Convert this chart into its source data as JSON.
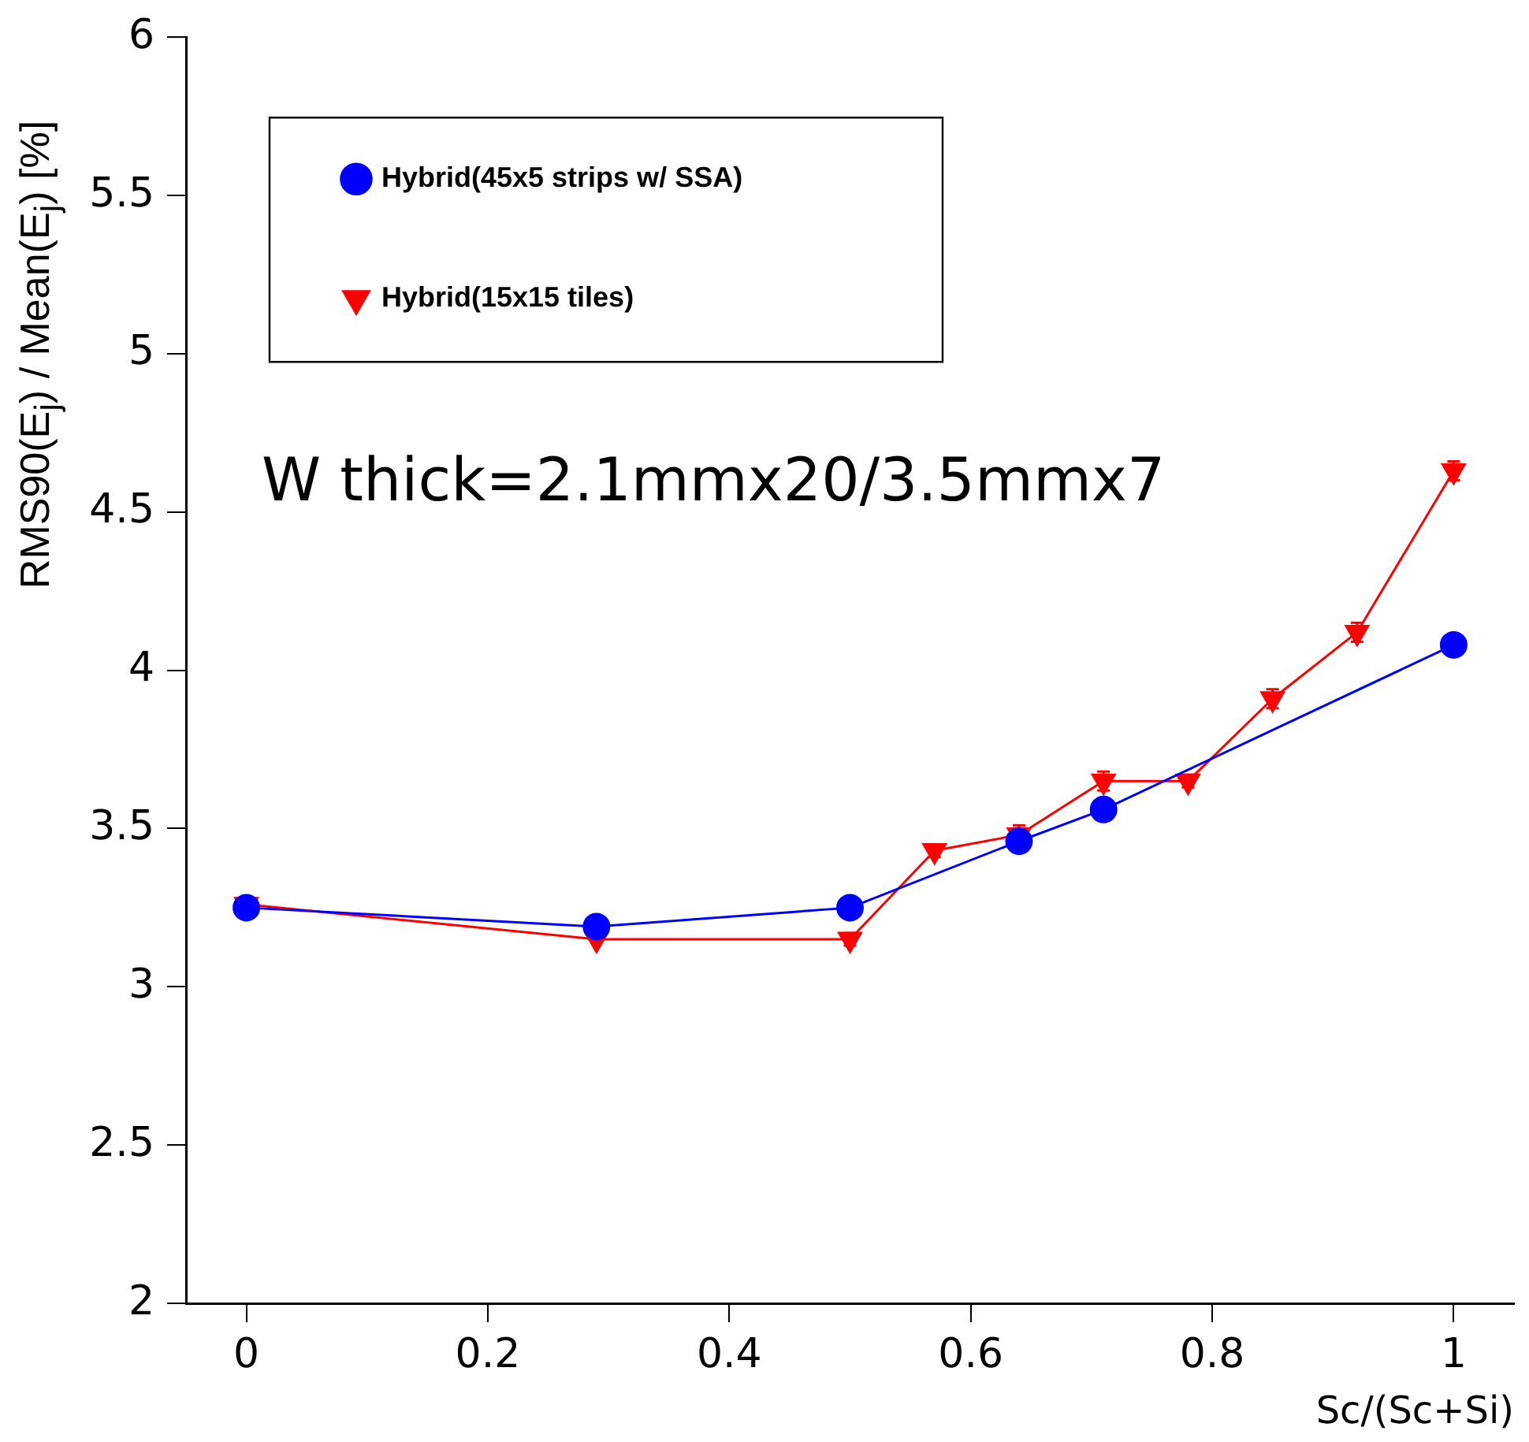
{
  "chart_data": {
    "type": "line",
    "xlabel": "Sc/(Sc+Si)",
    "ylabel": "RMS90(E$_{j}$) / Mean(E$_{j}$)  [%]",
    "annotations": [
      "W thick=2.1mmx20/3.5mmx7"
    ],
    "legend": "top left",
    "grid": false,
    "line_style": "solid",
    "xlim": [
      -0.05,
      1.05
    ],
    "xticks": [
      0,
      0.2,
      0.4,
      0.6,
      0.8,
      1
    ],
    "ylim": [
      2,
      6
    ],
    "yticks": [
      2,
      2.5,
      3,
      3.5,
      4,
      4.5,
      5,
      5.5,
      6
    ],
    "series": [
      {
        "name": "Hybrid(45x5 strips w/ SSA)",
        "color": "#0000ff",
        "marker": "circle",
        "x": [
          0,
          0.29,
          0.5,
          0.64,
          0.71,
          1
        ],
        "values": [
          3.25,
          3.19,
          3.25,
          3.46,
          3.56,
          4.08
        ],
        "errors": [
          0.02,
          0.02,
          0.02,
          0.02,
          0.02,
          0.03
        ]
      },
      {
        "name": "Hybrid(15x15 tiles)",
        "color": "#ff0000",
        "marker": "triangle",
        "x": [
          0,
          0.29,
          0.5,
          0.57,
          0.64,
          0.71,
          0.78,
          0.85,
          0.92,
          1
        ],
        "values": [
          3.26,
          3.15,
          3.15,
          3.43,
          3.48,
          3.65,
          3.65,
          3.91,
          4.12,
          4.63
        ],
        "errors": [
          0.02,
          null,
          0.02,
          0.02,
          0.03,
          0.03,
          0.02,
          0.03,
          0.03,
          0.03
        ]
      }
    ]
  }
}
